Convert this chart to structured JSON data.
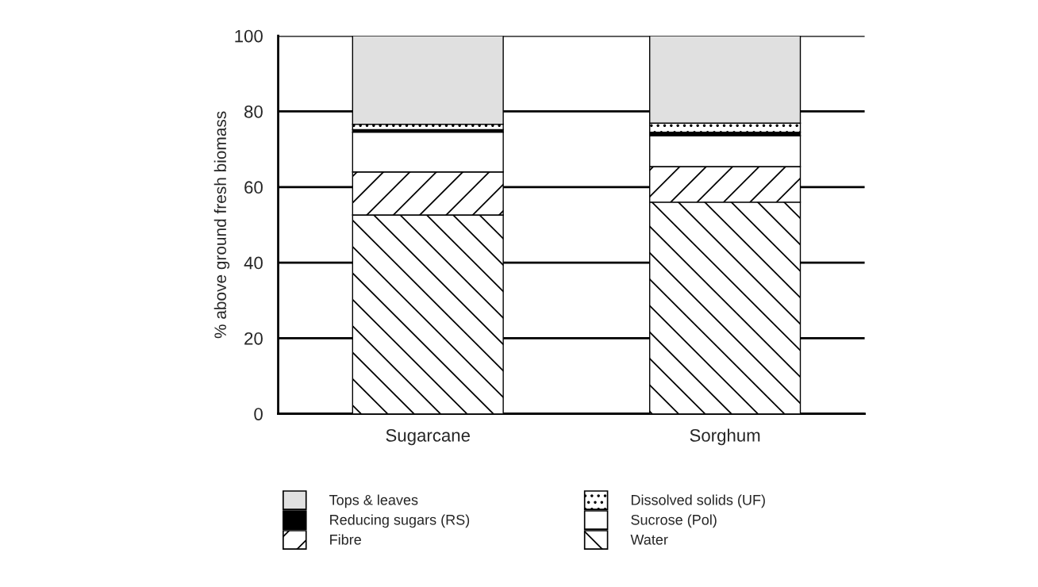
{
  "chart_data": {
    "type": "bar",
    "stacked": true,
    "ylabel": "% above ground fresh biomass",
    "categories": [
      "Sugarcane",
      "Sorghum"
    ],
    "series": [
      {
        "name": "Water",
        "color": "#ffffff",
        "values": [
          52.6,
          56.0
        ]
      },
      {
        "name": "Fibre",
        "color": "#ffffff",
        "values": [
          11.4,
          9.4
        ]
      },
      {
        "name": "Sucrose (Pol)",
        "color": "#ffffff",
        "values": [
          10.5,
          8.2
        ]
      },
      {
        "name": "Reducing sugars (RS)",
        "color": "#000000",
        "values": [
          0.7,
          0.9
        ]
      },
      {
        "name": "Dissolved solids (UF)",
        "color": "#ffffff",
        "values": [
          1.4,
          2.4
        ]
      },
      {
        "name": "Tops & leaves",
        "color": "#e0e0e0",
        "values": [
          23.4,
          23.1
        ]
      }
    ],
    "ylim": [
      0,
      100
    ],
    "yticks": [
      0,
      20,
      40,
      60,
      80,
      100
    ],
    "grid": "y",
    "legend": "bottom"
  }
}
